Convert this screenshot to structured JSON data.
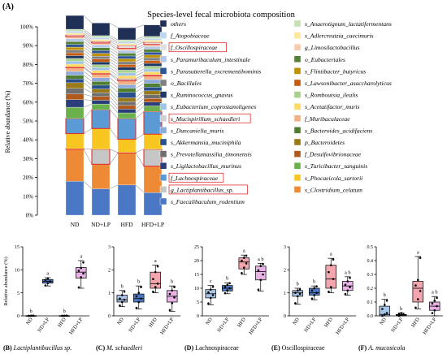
{
  "panel_labels": {
    "A": "(A)",
    "B": "(B)",
    "C": "(C)",
    "D": "(D)",
    "E": "(E)",
    "F": "(F)"
  },
  "chart_data": [
    {
      "type": "bar",
      "title": "Species-level fecal microbiota composition",
      "ylabel": "Relative abundance (%)",
      "ylim": [
        0,
        100
      ],
      "yticks": [
        "0%",
        "10%",
        "20%",
        "30%",
        "40%",
        "50%",
        "60%",
        "70%",
        "80%",
        "90%",
        "100%"
      ],
      "categories": [
        "ND",
        "ND+LP",
        "HFD",
        "HFD+LP"
      ],
      "series": [
        {
          "name": "s_Faecalibaculum_rodentium",
          "color": "#4a78c4",
          "values": [
            18,
            14,
            16,
            12
          ]
        },
        {
          "name": "s_Clostridium_celatum",
          "color": "#ee8a36",
          "values": [
            17,
            13,
            17,
            14
          ]
        },
        {
          "name": "g_Lactiplantibacillus_sp.",
          "color": "#c6c6c6",
          "values": [
            0.3,
            8,
            0.3,
            9
          ],
          "highlight": true
        },
        {
          "name": "s_Phocaeicola_sartorii",
          "color": "#f7c620",
          "values": [
            8,
            11,
            7,
            8
          ]
        },
        {
          "name": "f_Lachnospiraceae",
          "color": "#5b9bd5",
          "values": [
            8,
            10,
            11,
            12
          ],
          "highlight": true
        },
        {
          "name": "s_Turicibacter_sanguinis",
          "color": "#6ab04c",
          "values": [
            6,
            3,
            3,
            3
          ]
        },
        {
          "name": "s_Ligilactobacillus_murinus",
          "color": "#2a3f7a",
          "values": [
            4,
            2,
            2,
            2
          ]
        },
        {
          "name": "f_Desulfovibrionaceae",
          "color": "#b05a1e",
          "values": [
            3,
            2,
            2,
            2
          ]
        },
        {
          "name": "s_Prevotellamassilia_timonensis",
          "color": "#6f6f6f",
          "values": [
            3,
            2,
            2,
            2
          ]
        },
        {
          "name": "p_Bacteroidetes",
          "color": "#9a7a16",
          "values": [
            3,
            2,
            2,
            2
          ]
        },
        {
          "name": "s_Akkermansia_muciniphila",
          "color": "#29508a",
          "values": [
            2,
            2,
            3,
            2
          ]
        },
        {
          "name": "s_Bacteroides_acidifaciens",
          "color": "#4d7f2f",
          "values": [
            2,
            2,
            2,
            2
          ]
        },
        {
          "name": "s_Duncaniella_muris",
          "color": "#8eaadb",
          "values": [
            2,
            2,
            2,
            2
          ]
        },
        {
          "name": "f_Muribaculaceae",
          "color": "#f4b183",
          "values": [
            2,
            2,
            2,
            2
          ]
        },
        {
          "name": "s_Mucispirillum_schaedleri",
          "color": "#d0cece",
          "values": [
            0.4,
            0.4,
            1.2,
            0.6
          ],
          "highlight": true
        },
        {
          "name": "s_Acetatifactor_muris",
          "color": "#ffd966",
          "values": [
            1.5,
            1.5,
            1.5,
            1.5
          ]
        },
        {
          "name": "s_Eubacterium_coprostanoligenes",
          "color": "#9dc3e6",
          "values": [
            1.5,
            1.5,
            1.5,
            1.5
          ]
        },
        {
          "name": "s_Romboutsia_ilealis",
          "color": "#a9d18e",
          "values": [
            1.5,
            1.5,
            1.5,
            1.5
          ]
        },
        {
          "name": "s_Ruminococcus_gnavus",
          "color": "#1f3864",
          "values": [
            1.5,
            1.5,
            1.5,
            1.5
          ]
        },
        {
          "name": "s_Lawsonibacter_asaccharolyticus",
          "color": "#c55a11",
          "values": [
            1.5,
            1.5,
            1.5,
            1.5
          ]
        },
        {
          "name": "o_Bacillales",
          "color": "#808080",
          "values": [
            1.5,
            1.5,
            1.5,
            1.5
          ]
        },
        {
          "name": "s_Flintibacter_butyricus",
          "color": "#bf9000",
          "values": [
            1.5,
            1.5,
            1.5,
            1.5
          ]
        },
        {
          "name": "s_Parasutterella_excrementihominis",
          "color": "#2f5597",
          "values": [
            1.5,
            1.5,
            1.5,
            1.5
          ]
        },
        {
          "name": "o_Eubacteriales",
          "color": "#548235",
          "values": [
            1.5,
            1.5,
            1.5,
            1.5
          ]
        },
        {
          "name": "s_Paramuribaculum_intestinale",
          "color": "#b4c7e7",
          "values": [
            1.5,
            1.5,
            1.5,
            1.5
          ]
        },
        {
          "name": "g_Limosilactobacillus",
          "color": "#f8cbad",
          "values": [
            1,
            1,
            1,
            1
          ]
        },
        {
          "name": "f_Oscillospiraceae",
          "color": "#e0e0e0",
          "values": [
            1,
            0.9,
            1.6,
            1.3
          ],
          "highlight": true
        },
        {
          "name": "s_Adlercreutzia_caecimuris",
          "color": "#ffe699",
          "values": [
            1,
            1,
            1,
            1
          ]
        },
        {
          "name": "f_Atopobiaceae",
          "color": "#bdd7ee",
          "values": [
            1,
            1,
            1,
            1
          ]
        },
        {
          "name": "s_Anaerotignum_lactatifermentans",
          "color": "#c5e0b4",
          "values": [
            1,
            1,
            1,
            1
          ]
        },
        {
          "name": "others",
          "color": "#1f2f55",
          "values": [
            7.3,
            6.7,
            6.4,
            6.1
          ]
        }
      ],
      "legend": [
        {
          "label": "others",
          "color": "#1f2f55"
        },
        {
          "label": "s_Anaerotignum_lactatifermentans",
          "color": "#c5e0b4"
        },
        {
          "label": "f_Atopobiaceae",
          "color": "#bdd7ee"
        },
        {
          "label": "s_Adlercreutzia_caecimuris",
          "color": "#ffe699"
        },
        {
          "label": "f_Oscillospiraceae",
          "color": "#e0e0e0",
          "boxed": true
        },
        {
          "label": "g_Limosilactobacillus",
          "color": "#f8cbad"
        },
        {
          "label": "s_Paramuribaculum_intestinale",
          "color": "#b4c7e7"
        },
        {
          "label": "o_Eubacteriales",
          "color": "#548235"
        },
        {
          "label": "s_Parasutterella_excrementihominis",
          "color": "#2f5597"
        },
        {
          "label": "s_Flintibacter_butyricus",
          "color": "#bf9000"
        },
        {
          "label": "o_Bacillales",
          "color": "#808080"
        },
        {
          "label": "s_Lawsonibacter_asaccharolyticus",
          "color": "#c55a11"
        },
        {
          "label": "s_Ruminococcus_gnavus",
          "color": "#1f3864"
        },
        {
          "label": "s_Romboutsia_ilealis",
          "color": "#a9d18e"
        },
        {
          "label": "s_Eubacterium_coprostanoligenes",
          "color": "#9dc3e6"
        },
        {
          "label": "s_Acetatifactor_muris",
          "color": "#ffd966"
        },
        {
          "label": "s_Mucispirillum_schaedleri",
          "color": "#d0cece",
          "boxed": true
        },
        {
          "label": "f_Muribaculaceae",
          "color": "#f4b183"
        },
        {
          "label": "s_Duncaniella_muris",
          "color": "#8eaadb"
        },
        {
          "label": "s_Bacteroides_acidifaciens",
          "color": "#4d7f2f"
        },
        {
          "label": "s_Akkermansia_muciniphila",
          "color": "#29508a"
        },
        {
          "label": "p_Bacteroidetes",
          "color": "#9a7a16"
        },
        {
          "label": "s_Prevotellamassilia_timonensis",
          "color": "#6f6f6f"
        },
        {
          "label": "f_Desulfovibrionaceae",
          "color": "#b05a1e"
        },
        {
          "label": "s_Ligilactobacillus_murinus",
          "color": "#2a3f7a"
        },
        {
          "label": "s_Turicibacter_sanguinis",
          "color": "#6ab04c"
        },
        {
          "label": "f_Lachnospiraceae",
          "color": "#5b9bd5",
          "boxed": true
        },
        {
          "label": "s_Phocaeicola_sartorii",
          "color": "#f7c620"
        },
        {
          "label": "g_Lactiplantibacillus_sp.",
          "color": "#c6c6c6",
          "boxed": true
        },
        {
          "label": "s_Clostridium_celatum",
          "color": "#ee8a36"
        },
        {
          "label": "s_Faecalibaculum_rodentium",
          "color": "#4a78c4"
        }
      ]
    },
    {
      "type": "box",
      "panel": "B",
      "title": "Lactiplantibacillus sp.",
      "ylabel": "Relative abundance (%)",
      "ylim": [
        0,
        15
      ],
      "yticks": [
        0,
        5,
        10,
        15
      ],
      "categories": [
        "ND",
        "ND+LP",
        "HFD",
        "HFD+LP"
      ],
      "colors": [
        "#a8c4e6",
        "#4a78c4",
        "#f4a6ae",
        "#e9b3e8"
      ],
      "boxes": [
        {
          "min": 0,
          "q1": 0,
          "median": 0,
          "q3": 0.05,
          "max": 0.1,
          "points": [
            0,
            0.02,
            0.05,
            0.01,
            0.03,
            0.04
          ]
        },
        {
          "min": 6.5,
          "q1": 7.1,
          "median": 7.5,
          "q3": 7.9,
          "max": 8.3,
          "points": [
            6.6,
            7.1,
            7.5,
            7.8,
            8.1
          ]
        },
        {
          "min": 0,
          "q1": 0,
          "median": 0,
          "q3": 0.05,
          "max": 0.1,
          "points": [
            0,
            0.02,
            0.05,
            0.01,
            0.03,
            0.04
          ]
        },
        {
          "min": 6,
          "q1": 8.2,
          "median": 9.5,
          "q3": 10.5,
          "max": 12,
          "points": [
            6.2,
            8.4,
            9.2,
            9.8,
            10.4,
            11.6
          ]
        }
      ],
      "letters": [
        "b",
        "a",
        "b",
        "a"
      ]
    },
    {
      "type": "box",
      "panel": "C",
      "title": "M. schaedleri",
      "ylim": [
        0,
        3
      ],
      "yticks": [
        0,
        1,
        2,
        3
      ],
      "categories": [
        "ND",
        "ND+LP",
        "HFD",
        "HFD+LP"
      ],
      "colors": [
        "#a8c4e6",
        "#4a78c4",
        "#f4a6ae",
        "#e9b3e8"
      ],
      "boxes": [
        {
          "min": 0.4,
          "q1": 0.6,
          "median": 0.7,
          "q3": 0.9,
          "max": 1.1,
          "points": [
            0.45,
            0.6,
            0.7,
            0.75,
            0.9,
            1.05
          ]
        },
        {
          "min": 0.3,
          "q1": 0.6,
          "median": 0.75,
          "q3": 0.95,
          "max": 1.3,
          "points": [
            0.35,
            0.6,
            0.75,
            0.85,
            1.0,
            1.25
          ]
        },
        {
          "min": 1.0,
          "q1": 1.2,
          "median": 1.4,
          "q3": 1.9,
          "max": 2.2,
          "points": [
            1.05,
            1.25,
            1.4,
            1.6,
            1.9,
            2.15
          ]
        },
        {
          "min": 0.2,
          "q1": 0.6,
          "median": 0.85,
          "q3": 1.1,
          "max": 1.3,
          "points": [
            0.25,
            0.55,
            0.8,
            0.95,
            1.1,
            1.25
          ]
        }
      ],
      "letters": [
        "b",
        "b",
        "a",
        "b"
      ]
    },
    {
      "type": "box",
      "panel": "D",
      "title": "Lachnospiraceae",
      "ylim": [
        0,
        25
      ],
      "yticks": [
        0,
        5,
        10,
        15,
        20,
        25
      ],
      "categories": [
        "ND",
        "ND+LP",
        "HFD",
        "HFD+LP"
      ],
      "colors": [
        "#a8c4e6",
        "#4a78c4",
        "#f4a6ae",
        "#e9b3e8"
      ],
      "boxes": [
        {
          "min": 4,
          "q1": 6.5,
          "median": 8,
          "q3": 9.5,
          "max": 11,
          "points": [
            4.5,
            6.5,
            7.5,
            8.5,
            9.5,
            10.5
          ]
        },
        {
          "min": 8,
          "q1": 9,
          "median": 10,
          "q3": 11,
          "max": 12,
          "points": [
            8.2,
            9.2,
            10,
            10.5,
            11.2,
            11.8
          ]
        },
        {
          "min": 15,
          "q1": 17,
          "median": 19.5,
          "q3": 21,
          "max": 22,
          "points": [
            15.5,
            17.5,
            19,
            20,
            21,
            21.8
          ]
        },
        {
          "min": 9,
          "q1": 13,
          "median": 16,
          "q3": 18,
          "max": 19,
          "points": [
            9.5,
            13,
            15,
            16.5,
            18,
            18.8
          ]
        }
      ],
      "letters": [
        "c",
        "b",
        "a",
        "a b"
      ]
    },
    {
      "type": "box",
      "panel": "E",
      "title": "Oscillospiraceae",
      "ylim": [
        0,
        3
      ],
      "yticks": [
        0,
        1,
        2,
        3
      ],
      "categories": [
        "ND",
        "ND+LP",
        "HFD",
        "HFD+LP"
      ],
      "colors": [
        "#a8c4e6",
        "#4a78c4",
        "#f4a6ae",
        "#e9b3e8"
      ],
      "boxes": [
        {
          "min": 0.5,
          "q1": 0.85,
          "median": 1.0,
          "q3": 1.1,
          "max": 1.2,
          "points": [
            0.55,
            0.85,
            0.95,
            1.0,
            1.1,
            1.15
          ]
        },
        {
          "min": 0.7,
          "q1": 0.9,
          "median": 1.0,
          "q3": 1.2,
          "max": 1.3,
          "points": [
            0.75,
            0.9,
            1.0,
            1.1,
            1.2,
            1.28
          ]
        },
        {
          "min": 1.0,
          "q1": 1.2,
          "median": 1.6,
          "q3": 2.2,
          "max": 2.5,
          "points": [
            1.05,
            1.25,
            1.6,
            1.9,
            2.2,
            2.45
          ]
        },
        {
          "min": 0.9,
          "q1": 1.1,
          "median": 1.3,
          "q3": 1.5,
          "max": 1.7,
          "points": [
            0.95,
            1.1,
            1.25,
            1.35,
            1.5,
            1.65
          ]
        }
      ],
      "letters": [
        "b",
        "b",
        "a",
        "a b"
      ]
    },
    {
      "type": "box",
      "panel": "F",
      "title": "A. mucosicola",
      "ylim": [
        0,
        0.5
      ],
      "yticks": [
        0.0,
        0.1,
        0.2,
        0.3,
        0.4,
        0.5
      ],
      "categories": [
        "ND",
        "ND+LP",
        "HFD",
        "HFD+LP"
      ],
      "colors": [
        "#a8c4e6",
        "#4a78c4",
        "#f4a6ae",
        "#e9b3e8"
      ],
      "boxes": [
        {
          "min": 0,
          "q1": 0,
          "median": 0.01,
          "q3": 0.07,
          "max": 0.12,
          "points": [
            0,
            0.01,
            0.02,
            0.05,
            0.08,
            0.11
          ]
        },
        {
          "min": 0,
          "q1": 0,
          "median": 0.005,
          "q3": 0.01,
          "max": 0.02,
          "points": [
            0,
            0.005,
            0.01,
            0.015,
            0.02
          ]
        },
        {
          "min": 0.05,
          "q1": 0.1,
          "median": 0.2,
          "q3": 0.25,
          "max": 0.43,
          "points": [
            0.06,
            0.12,
            0.18,
            0.22,
            0.26,
            0.42
          ]
        },
        {
          "min": 0,
          "q1": 0.04,
          "median": 0.07,
          "q3": 0.1,
          "max": 0.14,
          "points": [
            0.02,
            0.04,
            0.07,
            0.09,
            0.11,
            0.13
          ]
        }
      ],
      "letters": [
        "b",
        "b",
        "a",
        "a b"
      ]
    }
  ]
}
